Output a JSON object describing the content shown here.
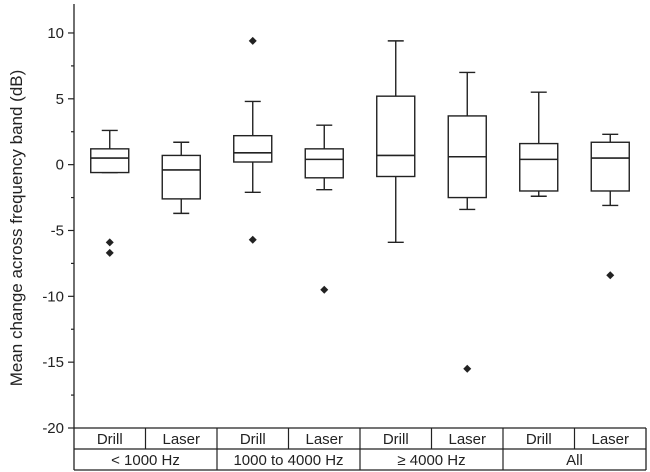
{
  "chart_data": {
    "type": "boxplot",
    "ylabel": "Mean change across frequency band (dB)",
    "ylim": [
      -20,
      12.2
    ],
    "yticks": [
      10,
      5,
      0,
      -5,
      -10,
      -15,
      -20
    ],
    "ytick_labels": [
      "10",
      "5",
      "0",
      "-5",
      "-10",
      "-15",
      "-20"
    ],
    "groups": [
      {
        "label": "< 1000 Hz",
        "categories": [
          "Drill",
          "Laser"
        ]
      },
      {
        "label": "1000 to 4000 Hz",
        "categories": [
          "Drill",
          "Laser"
        ]
      },
      {
        "label": "≥ 4000 Hz",
        "categories": [
          "Drill",
          "Laser"
        ]
      },
      {
        "label": "All",
        "categories": [
          "Drill",
          "Laser"
        ]
      }
    ],
    "boxes": [
      {
        "group": 0,
        "category": "Drill",
        "whisker_low": -0.6,
        "q1": -0.6,
        "median": 0.5,
        "q3": 1.2,
        "whisker_high": 2.6,
        "outliers": [
          -5.9,
          -6.7
        ]
      },
      {
        "group": 0,
        "category": "Laser",
        "whisker_low": -3.7,
        "q1": -2.6,
        "median": -0.4,
        "q3": 0.7,
        "whisker_high": 1.7,
        "outliers": []
      },
      {
        "group": 1,
        "category": "Drill",
        "whisker_low": -2.1,
        "q1": 0.2,
        "median": 0.9,
        "q3": 2.2,
        "whisker_high": 4.8,
        "outliers": [
          9.4,
          -5.7
        ]
      },
      {
        "group": 1,
        "category": "Laser",
        "whisker_low": -1.9,
        "q1": -1.0,
        "median": 0.4,
        "q3": 1.2,
        "whisker_high": 3.0,
        "outliers": [
          -9.5
        ]
      },
      {
        "group": 2,
        "category": "Drill",
        "whisker_low": -5.9,
        "q1": -0.9,
        "median": 0.7,
        "q3": 5.2,
        "whisker_high": 9.4,
        "outliers": []
      },
      {
        "group": 2,
        "category": "Laser",
        "whisker_low": -3.4,
        "q1": -2.5,
        "median": 0.6,
        "q3": 3.7,
        "whisker_high": 7.0,
        "outliers": [
          -15.5
        ]
      },
      {
        "group": 3,
        "category": "Drill",
        "whisker_low": -2.4,
        "q1": -2.0,
        "median": 0.4,
        "q3": 1.6,
        "whisker_high": 5.5,
        "outliers": []
      },
      {
        "group": 3,
        "category": "Laser",
        "whisker_low": -3.1,
        "q1": -2.0,
        "median": 0.5,
        "q3": 1.7,
        "whisker_high": 2.3,
        "outliers": [
          -8.4
        ]
      }
    ]
  }
}
